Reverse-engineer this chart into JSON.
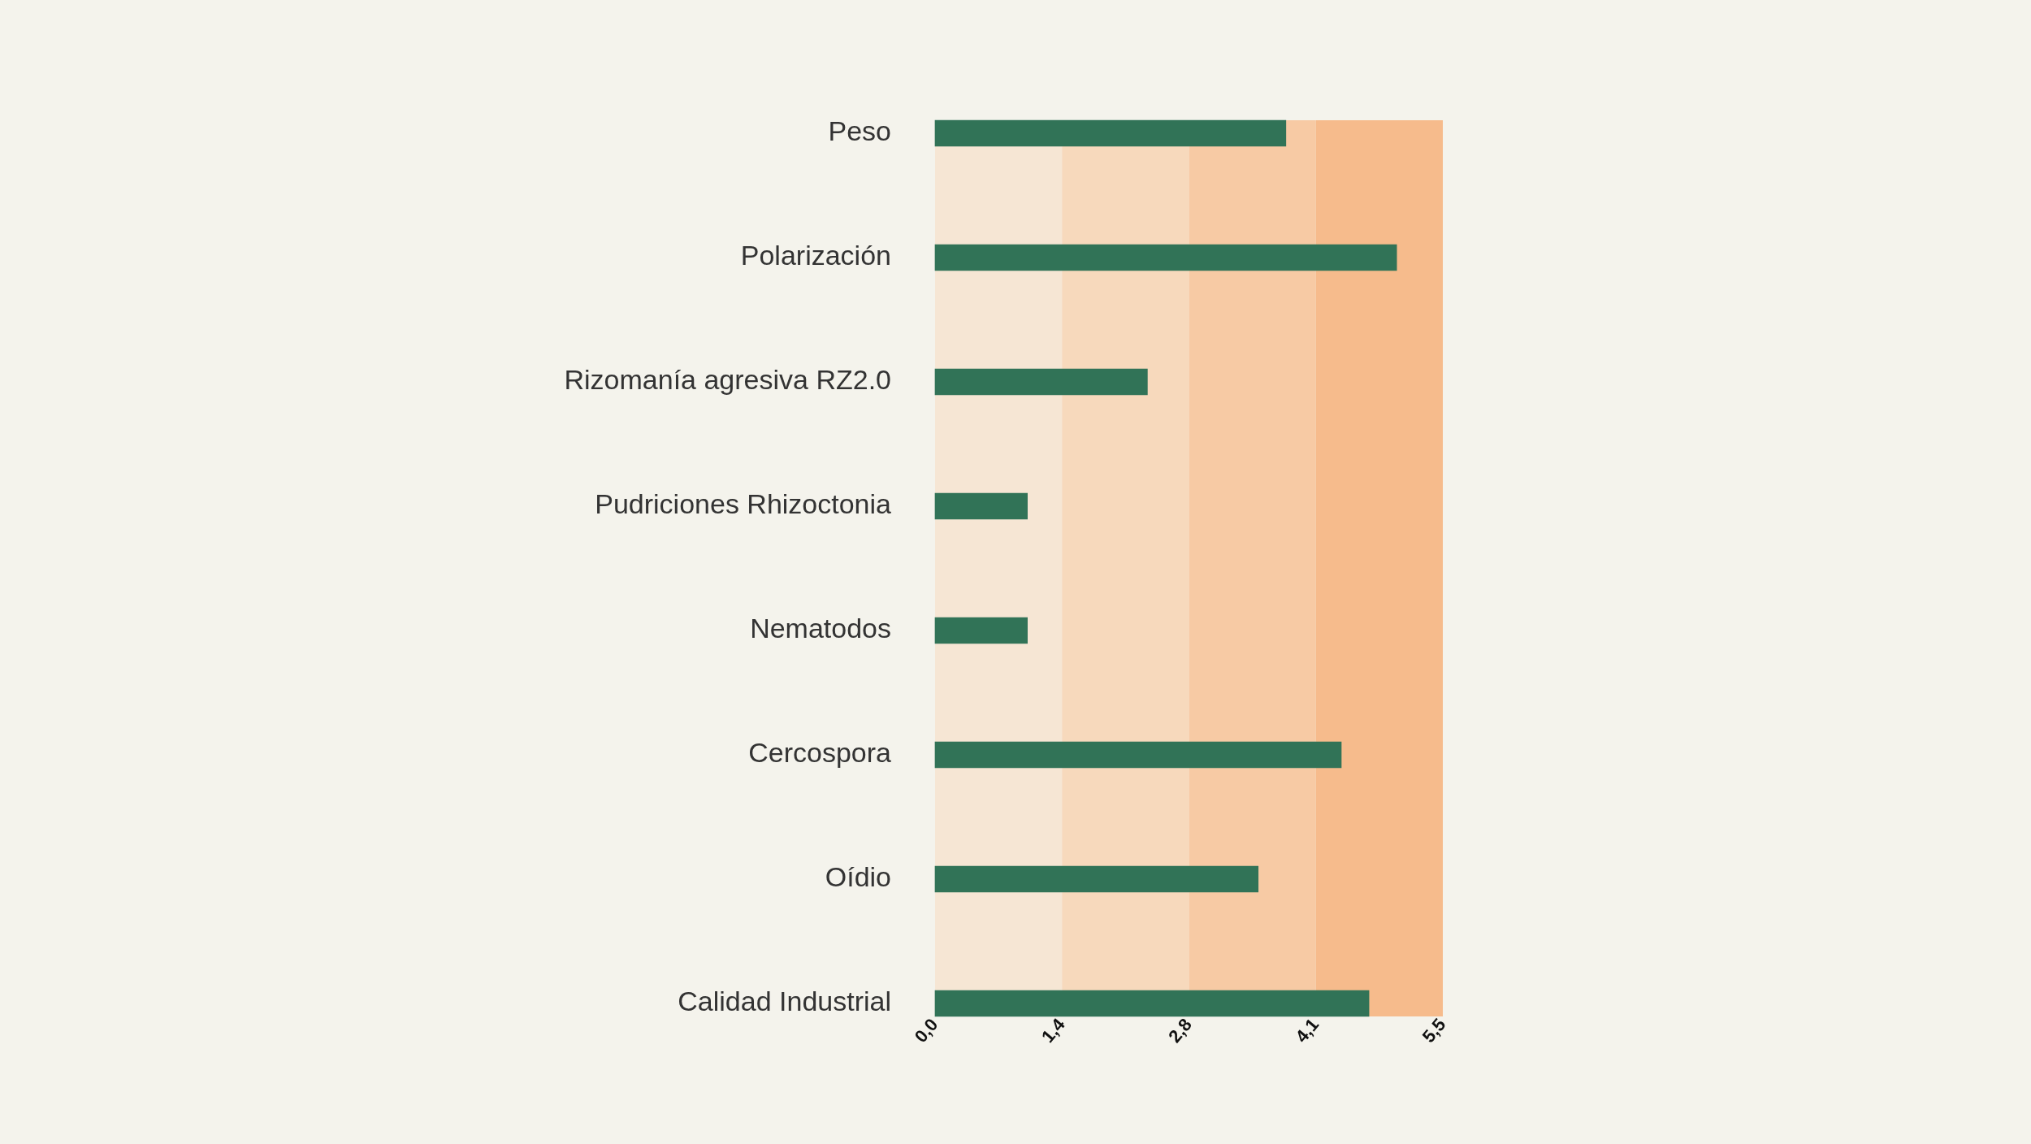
{
  "chart_data": {
    "type": "bar",
    "orientation": "horizontal",
    "categories": [
      "Peso",
      "Polarización",
      "Rizomanía agresiva RZ2.0",
      "Pudriciones Rhizoctonia",
      "Nematodos",
      "Cercospora",
      "Oídio",
      "Calidad Industrial"
    ],
    "values": [
      3.8,
      5.0,
      2.3,
      1.0,
      1.0,
      4.4,
      3.5,
      4.7
    ],
    "color": "#317357",
    "xlim": [
      0,
      5.5
    ],
    "xticks": [
      {
        "value": 0,
        "label": "0,0"
      },
      {
        "value": 1.375,
        "label": "1,4"
      },
      {
        "value": 2.75,
        "label": "2,8"
      },
      {
        "value": 4.125,
        "label": "4,1"
      },
      {
        "value": 5.5,
        "label": "5,5"
      }
    ],
    "bands": [
      {
        "axis": "x",
        "from": 0,
        "to": 1.375,
        "color": "#f6e6d4"
      },
      {
        "axis": "x",
        "from": 1.375,
        "to": 2.75,
        "color": "#f7d9bc"
      },
      {
        "axis": "x",
        "from": 2.75,
        "to": 4.125,
        "color": "#f7caa4"
      },
      {
        "axis": "x",
        "from": 4.125,
        "to": 5.5,
        "color": "#f6bb8c"
      }
    ],
    "grid": false,
    "legend": false
  }
}
